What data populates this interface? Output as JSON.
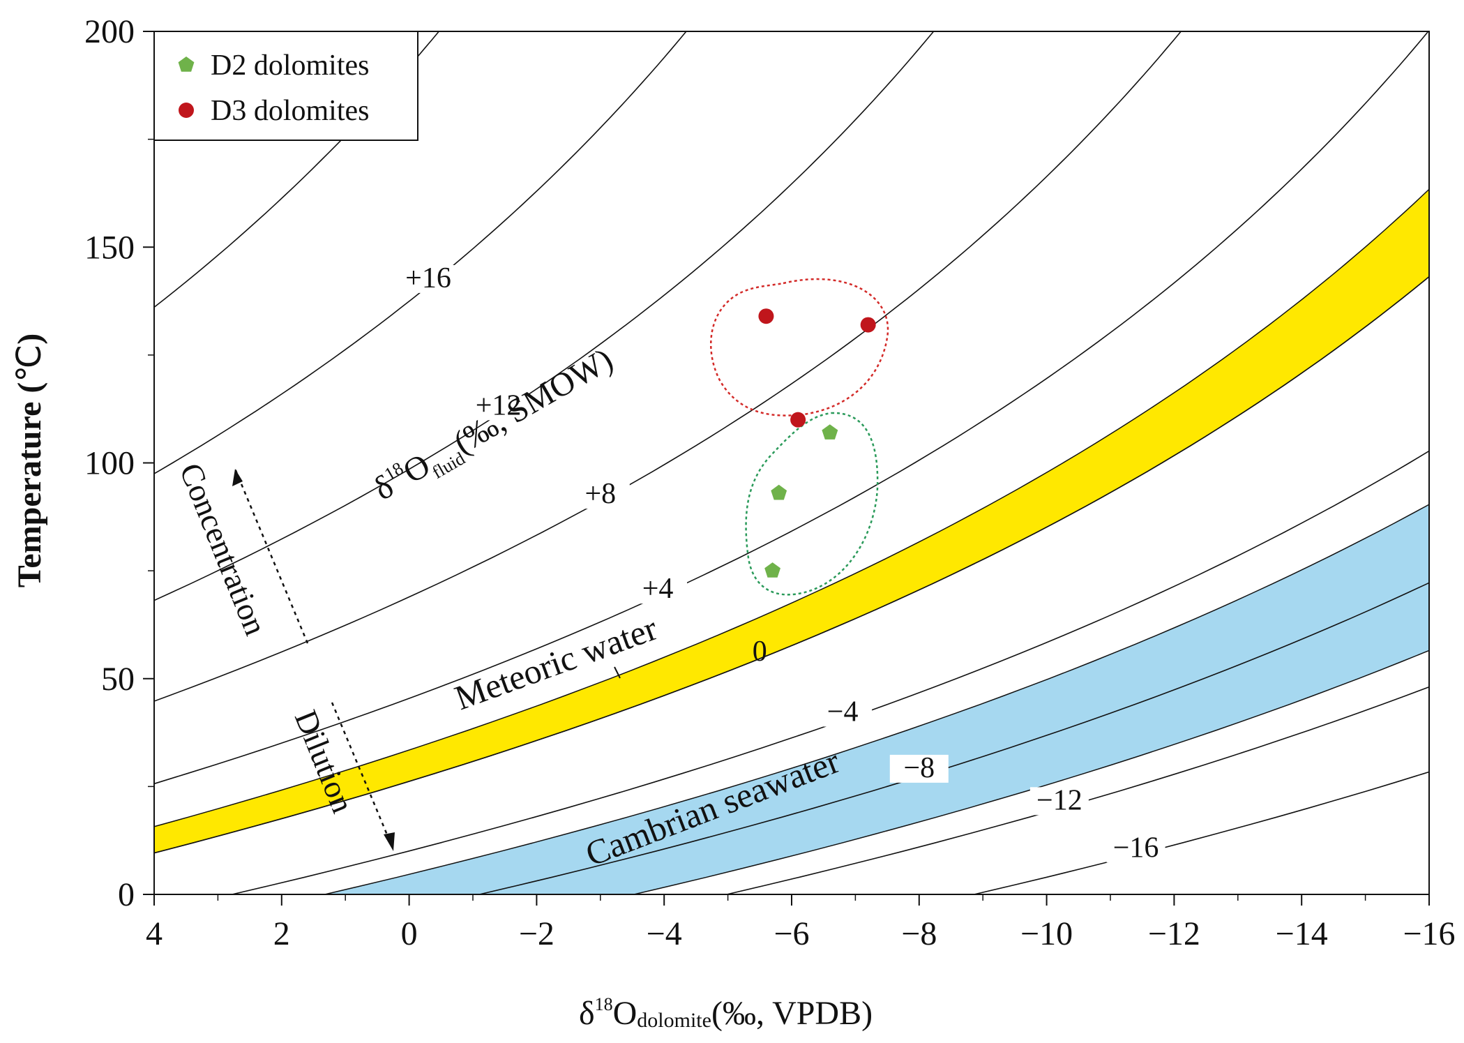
{
  "chart_data": {
    "type": "scatter",
    "xlabel": "δ18Odolomite(‰, VPDB)",
    "xlabel_parts": {
      "delta": "δ",
      "sup": "18",
      "base": "O",
      "sub": "dolomite",
      "rest": "(‰, VPDB)"
    },
    "ylabel": "Temperature (℃)",
    "ylabel_parts": {
      "base": "Temperature (",
      "unit": "℃",
      "close": ")"
    },
    "xlim": [
      4,
      -16
    ],
    "ylim": [
      0,
      200
    ],
    "xticks": [
      4,
      2,
      0,
      -2,
      -4,
      -6,
      -8,
      -10,
      -12,
      -14,
      -16
    ],
    "xtick_labels": [
      "4",
      "2",
      "0",
      "−2",
      "−4",
      "−6",
      "−8",
      "−10",
      "−12",
      "−14",
      "−16"
    ],
    "yticks": [
      0,
      50,
      100,
      150,
      200
    ],
    "ytick_labels": [
      "0",
      "50",
      "100",
      "150",
      "200"
    ],
    "fluid_axis_label": "δ18Ofluid(‰, SMOW)",
    "fluid_label_parts": {
      "delta": "δ",
      "sup": "18",
      "base": "O",
      "sub": "fluid",
      "rest": "(‰, SMOW)"
    },
    "isolines": [
      {
        "value": 20,
        "label": ""
      },
      {
        "value": 16,
        "label": "+16"
      },
      {
        "value": 12,
        "label": "+12"
      },
      {
        "value": 8,
        "label": "+8"
      },
      {
        "value": 4,
        "label": "+4"
      },
      {
        "value": 0,
        "label": "0"
      },
      {
        "value": -4,
        "label": "−4"
      },
      {
        "value": -8,
        "label": "−8"
      },
      {
        "value": -12,
        "label": "−12"
      },
      {
        "value": -16,
        "label": "−16"
      }
    ],
    "bands": [
      {
        "name": "Meteoric water",
        "fluid_range": [
          0,
          1.6
        ],
        "color": "#ffe800"
      },
      {
        "name": "Cambrian seawater",
        "fluid_range": [
          -10.5,
          -5.5
        ],
        "color": "#a6d8f0"
      }
    ],
    "arrows": [
      {
        "name": "Concentration",
        "label": "Concentration"
      },
      {
        "name": "Dilution",
        "label": "Dilution"
      }
    ],
    "series": [
      {
        "name": "D2 dolomites",
        "marker": "pentagon",
        "color": "#6fb24a",
        "points": [
          {
            "x": -6.6,
            "y": 107
          },
          {
            "x": -5.8,
            "y": 93
          },
          {
            "x": -5.7,
            "y": 75
          }
        ]
      },
      {
        "name": "D3 dolomites",
        "marker": "circle",
        "color": "#c0161c",
        "points": [
          {
            "x": -5.6,
            "y": 134
          },
          {
            "x": -7.2,
            "y": 132
          },
          {
            "x": -6.1,
            "y": 110
          }
        ]
      }
    ],
    "legend": {
      "position": "top-left"
    },
    "grid": false
  }
}
